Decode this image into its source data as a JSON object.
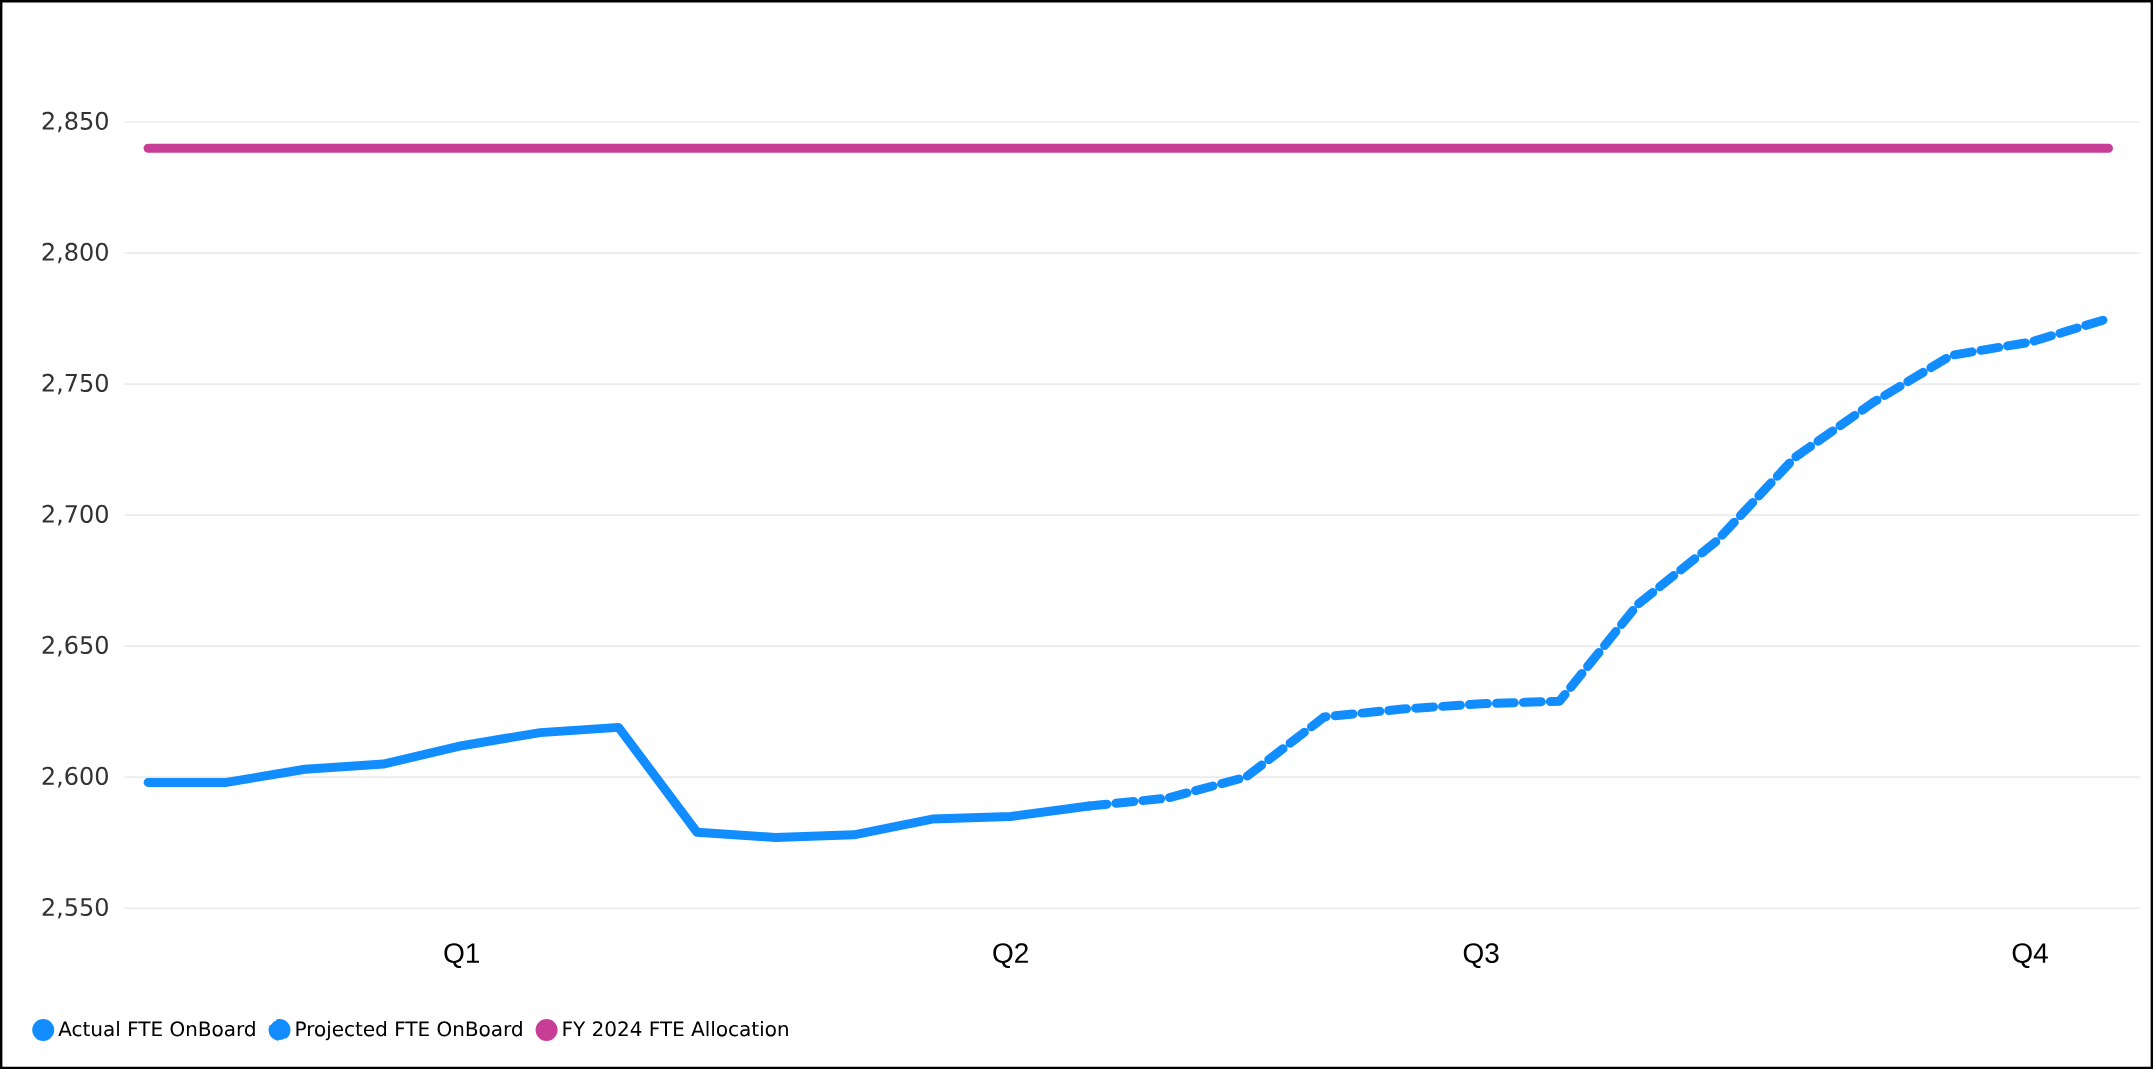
{
  "chart_data": {
    "type": "line",
    "categories": [
      null,
      null,
      null,
      null,
      "Q1",
      null,
      null,
      null,
      null,
      null,
      null,
      "Q2",
      null,
      null,
      null,
      null,
      null,
      "Q3",
      null,
      null,
      null,
      null,
      null,
      null,
      "Q4",
      null
    ],
    "ylim": [
      2550,
      2850
    ],
    "yticks": [
      {
        "value": 2550,
        "label": "2,550"
      },
      {
        "value": 2600,
        "label": "2,600"
      },
      {
        "value": 2650,
        "label": "2,650"
      },
      {
        "value": 2700,
        "label": "2,700"
      },
      {
        "value": 2750,
        "label": "2,750"
      },
      {
        "value": 2800,
        "label": "2,800"
      },
      {
        "value": 2850,
        "label": "2,850"
      }
    ],
    "grid": "y",
    "legend": "bottom left",
    "marker": "none",
    "series": [
      {
        "name": "Actual FTE OnBoard",
        "color": "#118dff",
        "line_style": "solid",
        "values": [
          2598,
          2598,
          2603,
          2605,
          2612,
          2617,
          2619,
          2579,
          2577,
          2578,
          2584,
          2585,
          2589,
          null,
          null,
          null,
          null,
          null,
          null,
          null,
          null,
          null,
          null,
          null,
          null,
          null
        ]
      },
      {
        "name": "Projected FTE OnBoard",
        "color": "#118dff",
        "line_style": "dashed",
        "values": [
          null,
          null,
          null,
          null,
          null,
          null,
          null,
          null,
          null,
          null,
          null,
          null,
          2589,
          2592,
          2600,
          2623,
          2626,
          2628,
          2629,
          2666,
          2690,
          2722,
          2743,
          2761,
          2766,
          2775
        ]
      },
      {
        "name": "FY 2024  FTE Allocation",
        "color": "#c83d95",
        "line_style": "solid",
        "values": [
          2840,
          2840,
          2840,
          2840,
          2840,
          2840,
          2840,
          2840,
          2840,
          2840,
          2840,
          2840,
          2840,
          2840,
          2840,
          2840,
          2840,
          2840,
          2840,
          2840,
          2840,
          2840,
          2840,
          2840,
          2840,
          2840
        ]
      }
    ]
  }
}
